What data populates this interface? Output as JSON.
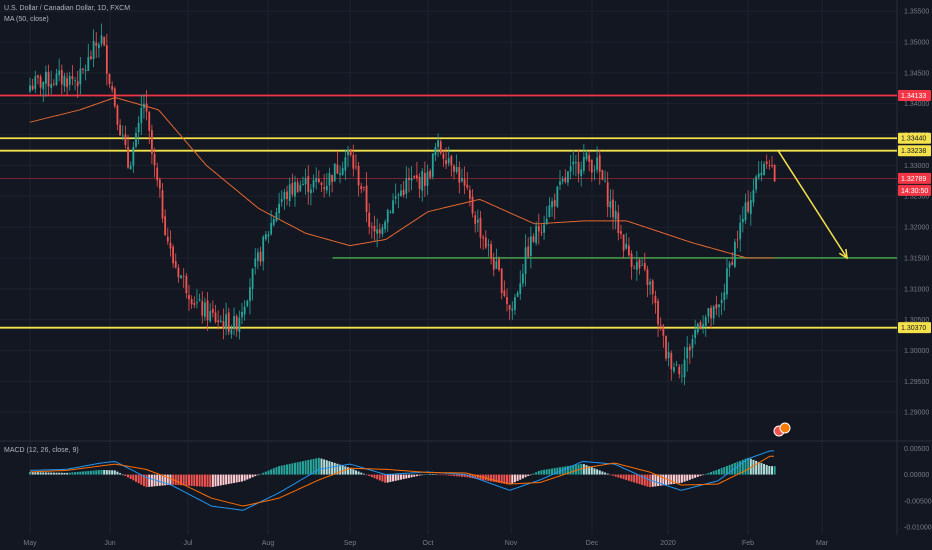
{
  "header": {
    "title": "U.S. Dollar / Canadian Dollar, 1D, FXCM",
    "ma_label": "MA (50, close)",
    "macd_label": "MACD (12, 26, close, 9)"
  },
  "colors": {
    "background": "#131722",
    "grid": "#1e222d",
    "up": "#26a69a",
    "down": "#ef5350",
    "ma": "#e8672f",
    "macd_line": "#2196f3",
    "signal_line": "#ff6d00",
    "hist_up_strong": "#26a69a",
    "hist_up_weak": "#b2dfdb",
    "hist_down_strong": "#ef5350",
    "hist_down_weak": "#ffcdd2",
    "resistance_red": "#f23645",
    "yellow_level": "#f5e24b",
    "green_level": "#4caf50",
    "arrow": "#f5e24b"
  },
  "price_axis": {
    "ticks": [
      "1.35500",
      "1.35000",
      "1.34500",
      "1.34000",
      "1.33500",
      "1.33000",
      "1.32500",
      "1.32000",
      "1.31500",
      "1.31000",
      "1.30500",
      "1.30000",
      "1.29500",
      "1.29000"
    ]
  },
  "macd_axis": {
    "ticks": [
      "0.00500",
      "0.00000",
      "-0.00500",
      "-0.01000"
    ]
  },
  "x_axis": {
    "labels": [
      "May",
      "Jun",
      "Jul",
      "Aug",
      "Sep",
      "Oct",
      "Nov",
      "Dec",
      "2020",
      "Feb",
      "Mar"
    ]
  },
  "price_tags": [
    {
      "text": "1.34133",
      "color": "#f23645",
      "text_color": "#ffffff"
    },
    {
      "text": "1.33440",
      "color": "#f5e24b",
      "text_color": "#131722"
    },
    {
      "text": "1.33238",
      "color": "#f5e24b",
      "text_color": "#131722"
    },
    {
      "text": "1.32789",
      "color": "#f23645",
      "text_color": "#ffffff"
    },
    {
      "text": "14:30:50",
      "color": "#f23645",
      "text_color": "#ffffff"
    },
    {
      "text": "1.30370",
      "color": "#f5e24b",
      "text_color": "#131722"
    }
  ],
  "chart_data": [
    {
      "type": "candlestick",
      "title": "U.S. Dollar / Canadian Dollar, 1D, FXCM",
      "ylim": [
        1.2855,
        1.3568
      ],
      "x_labels": [
        "May",
        "Jun",
        "Jul",
        "Aug",
        "Sep",
        "Oct",
        "Nov",
        "Dec",
        "2020",
        "Feb",
        "Mar"
      ],
      "horizontal_levels": [
        {
          "value": 1.34133,
          "color": "resistance_red"
        },
        {
          "value": 1.3344,
          "color": "yellow_level"
        },
        {
          "value": 1.33238,
          "color": "yellow_level"
        },
        {
          "value": 1.3037,
          "color": "yellow_level"
        },
        {
          "value": 1.315,
          "color": "green_level",
          "from": "Aug 25"
        }
      ],
      "projection_arrow": {
        "from_value": 1.3325,
        "to_value": 1.315
      },
      "close_path": [
        {
          "date": "May 1",
          "close": 1.343
        },
        {
          "date": "May 10",
          "close": 1.344
        },
        {
          "date": "May 20",
          "close": 1.344
        },
        {
          "date": "May 28",
          "close": 1.351
        },
        {
          "date": "Jun 3",
          "close": 1.34
        },
        {
          "date": "Jun 8",
          "close": 1.33
        },
        {
          "date": "Jun 12",
          "close": 1.335
        },
        {
          "date": "Jun 14",
          "close": 1.341
        },
        {
          "date": "Jun 18",
          "close": 1.33
        },
        {
          "date": "Jun 25",
          "close": 1.315
        },
        {
          "date": "Jul 5",
          "close": 1.307
        },
        {
          "date": "Jul 12",
          "close": 1.305
        },
        {
          "date": "Jul 19",
          "close": 1.304
        },
        {
          "date": "Jul 28",
          "close": 1.315
        },
        {
          "date": "Aug 5",
          "close": 1.324
        },
        {
          "date": "Aug 12",
          "close": 1.327
        },
        {
          "date": "Aug 22",
          "close": 1.327
        },
        {
          "date": "Aug 31",
          "close": 1.332
        },
        {
          "date": "Sep 6",
          "close": 1.326
        },
        {
          "date": "Sep 10",
          "close": 1.318
        },
        {
          "date": "Sep 16",
          "close": 1.323
        },
        {
          "date": "Sep 23",
          "close": 1.327
        },
        {
          "date": "Oct 1",
          "close": 1.328
        },
        {
          "date": "Oct 4",
          "close": 1.333
        },
        {
          "date": "Oct 10",
          "close": 1.331
        },
        {
          "date": "Oct 18",
          "close": 1.322
        },
        {
          "date": "Oct 28",
          "close": 1.311
        },
        {
          "date": "Nov 1",
          "close": 1.306
        },
        {
          "date": "Nov 7",
          "close": 1.316
        },
        {
          "date": "Nov 14",
          "close": 1.322
        },
        {
          "date": "Nov 22",
          "close": 1.328
        },
        {
          "date": "Nov 28",
          "close": 1.331
        },
        {
          "date": "Dec 3",
          "close": 1.33
        },
        {
          "date": "Dec 8",
          "close": 1.324
        },
        {
          "date": "Dec 15",
          "close": 1.316
        },
        {
          "date": "Dec 24",
          "close": 1.311
        },
        {
          "date": "Dec 31",
          "close": 1.299
        },
        {
          "date": "Jan 6",
          "close": 1.297
        },
        {
          "date": "Jan 13",
          "close": 1.305
        },
        {
          "date": "Jan 20",
          "close": 1.306
        },
        {
          "date": "Jan 27",
          "close": 1.318
        },
        {
          "date": "Feb 3",
          "close": 1.326
        },
        {
          "date": "Feb 9",
          "close": 1.332
        },
        {
          "date": "Feb 12",
          "close": 1.3279
        }
      ],
      "ma_path": [
        {
          "date": "May 1",
          "value": 1.337
        },
        {
          "date": "May 20",
          "value": 1.339
        },
        {
          "date": "Jun 3",
          "value": 1.341
        },
        {
          "date": "Jun 20",
          "value": 1.339
        },
        {
          "date": "Jul 8",
          "value": 1.33
        },
        {
          "date": "Jul 28",
          "value": 1.323
        },
        {
          "date": "Aug 15",
          "value": 1.319
        },
        {
          "date": "Sep 1",
          "value": 1.317
        },
        {
          "date": "Sep 15",
          "value": 1.318
        },
        {
          "date": "Oct 1",
          "value": 1.3225
        },
        {
          "date": "Oct 20",
          "value": 1.3245
        },
        {
          "date": "Nov 10",
          "value": 1.3205
        },
        {
          "date": "Nov 28",
          "value": 1.321
        },
        {
          "date": "Dec 15",
          "value": 1.321
        },
        {
          "date": "Jan 10",
          "value": 1.3175
        },
        {
          "date": "Jan 31",
          "value": 1.315
        },
        {
          "date": "Feb 12",
          "value": 1.315
        }
      ]
    },
    {
      "type": "macd",
      "title": "MACD (12, 26, close, 9)",
      "ylim": [
        -0.0115,
        0.0062
      ],
      "macd_path": [
        {
          "date": "May 1",
          "value": 0.0008
        },
        {
          "date": "May 15",
          "value": 0.001
        },
        {
          "date": "May 28",
          "value": 0.0022
        },
        {
          "date": "Jun 3",
          "value": 0.0025
        },
        {
          "date": "Jun 15",
          "value": -0.0005
        },
        {
          "date": "Jun 25",
          "value": -0.002
        },
        {
          "date": "Jul 10",
          "value": -0.006
        },
        {
          "date": "Jul 22",
          "value": -0.0068
        },
        {
          "date": "Aug 5",
          "value": -0.0035
        },
        {
          "date": "Aug 20",
          "value": 0.001
        },
        {
          "date": "Sep 1",
          "value": 0.002
        },
        {
          "date": "Sep 15",
          "value": 0.0
        },
        {
          "date": "Oct 1",
          "value": 0.0005
        },
        {
          "date": "Oct 15",
          "value": 0.0
        },
        {
          "date": "Oct 31",
          "value": -0.003
        },
        {
          "date": "Nov 12",
          "value": -0.001
        },
        {
          "date": "Nov 28",
          "value": 0.0025
        },
        {
          "date": "Dec 10",
          "value": 0.002
        },
        {
          "date": "Dec 24",
          "value": -0.001
        },
        {
          "date": "Jan 6",
          "value": -0.003
        },
        {
          "date": "Jan 20",
          "value": -0.0012
        },
        {
          "date": "Feb 1",
          "value": 0.003
        },
        {
          "date": "Feb 10",
          "value": 0.0045
        }
      ],
      "signal_path": [
        {
          "date": "May 1",
          "value": 0.0005
        },
        {
          "date": "May 15",
          "value": 0.0008
        },
        {
          "date": "Jun 3",
          "value": 0.002
        },
        {
          "date": "Jun 15",
          "value": 0.001
        },
        {
          "date": "Jun 25",
          "value": -0.0008
        },
        {
          "date": "Jul 10",
          "value": -0.0045
        },
        {
          "date": "Jul 22",
          "value": -0.006
        },
        {
          "date": "Aug 5",
          "value": -0.0045
        },
        {
          "date": "Aug 20",
          "value": -0.001
        },
        {
          "date": "Sep 1",
          "value": 0.0012
        },
        {
          "date": "Sep 15",
          "value": 0.001
        },
        {
          "date": "Oct 1",
          "value": 0.0004
        },
        {
          "date": "Oct 15",
          "value": 0.0003
        },
        {
          "date": "Oct 31",
          "value": -0.0018
        },
        {
          "date": "Nov 12",
          "value": -0.0015
        },
        {
          "date": "Nov 28",
          "value": 0.0012
        },
        {
          "date": "Dec 10",
          "value": 0.0022
        },
        {
          "date": "Dec 24",
          "value": 0.0005
        },
        {
          "date": "Jan 6",
          "value": -0.002
        },
        {
          "date": "Jan 20",
          "value": -0.0018
        },
        {
          "date": "Feb 1",
          "value": 0.001
        },
        {
          "date": "Feb 10",
          "value": 0.0035
        }
      ]
    }
  ]
}
